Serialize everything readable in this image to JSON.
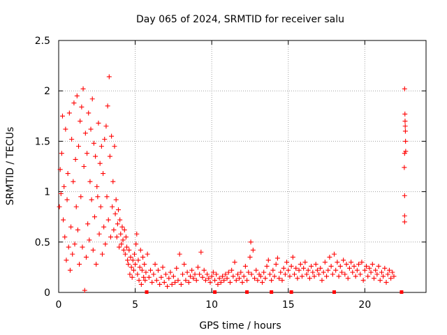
{
  "chart_data": {
    "type": "scatter",
    "title": "Day 065 of 2024, SRMTID for receiver salu",
    "xlabel": "GPS time / hours",
    "ylabel": "SRMTID / TECUs",
    "xlim": [
      0,
      24
    ],
    "ylim": [
      0,
      2.5
    ],
    "xticks": [
      0,
      5,
      10,
      15,
      20
    ],
    "xtick_labels": [
      "0",
      "5",
      "10",
      "15",
      "20"
    ],
    "yticks": [
      0,
      0.5,
      1,
      1.5,
      2,
      2.5
    ],
    "ytick_labels": [
      "0",
      "0.5",
      "1",
      "1.5",
      "2",
      "2.5"
    ],
    "grid": true,
    "marker": "+",
    "series_color": "#ff0000",
    "series": [
      {
        "name": "SRMTID",
        "points": [
          [
            0.05,
            0.85
          ],
          [
            0.1,
            1.22
          ],
          [
            0.15,
            0.98
          ],
          [
            0.2,
            1.38
          ],
          [
            0.25,
            1.75
          ],
          [
            0.3,
            0.72
          ],
          [
            0.35,
            1.05
          ],
          [
            0.4,
            0.55
          ],
          [
            0.45,
            1.62
          ],
          [
            0.5,
            0.32
          ],
          [
            0.55,
            0.92
          ],
          [
            0.6,
            1.18
          ],
          [
            0.65,
            0.45
          ],
          [
            0.7,
            1.78
          ],
          [
            0.75,
            0.22
          ],
          [
            0.8,
            0.65
          ],
          [
            0.85,
            1.52
          ],
          [
            0.9,
            0.38
          ],
          [
            0.95,
            1.1
          ],
          [
            1.0,
            1.88
          ],
          [
            1.05,
            0.48
          ],
          [
            1.1,
            1.32
          ],
          [
            1.15,
            0.85
          ],
          [
            1.2,
            1.95
          ],
          [
            1.25,
            0.62
          ],
          [
            1.3,
            1.45
          ],
          [
            1.35,
            0.28
          ],
          [
            1.4,
            1.7
          ],
          [
            1.45,
            0.95
          ],
          [
            1.5,
            1.84
          ],
          [
            1.55,
            0.45
          ],
          [
            1.6,
            2.02
          ],
          [
            1.65,
            1.25
          ],
          [
            1.7,
            0.02
          ],
          [
            1.75,
            1.58
          ],
          [
            1.8,
            0.35
          ],
          [
            1.85,
            1.38
          ],
          [
            1.9,
            0.68
          ],
          [
            1.95,
            1.78
          ],
          [
            2.0,
            0.52
          ],
          [
            2.05,
            1.1
          ],
          [
            2.1,
            1.62
          ],
          [
            2.15,
            0.92
          ],
          [
            2.2,
            1.92
          ],
          [
            2.25,
            0.42
          ],
          [
            2.3,
            1.48
          ],
          [
            2.35,
            0.75
          ],
          [
            2.4,
            1.35
          ],
          [
            2.45,
            0.28
          ],
          [
            2.5,
            1.05
          ],
          [
            2.55,
            0.95
          ],
          [
            2.6,
            1.68
          ],
          [
            2.65,
            0.58
          ],
          [
            2.7,
            1.28
          ],
          [
            2.75,
            0.85
          ],
          [
            2.8,
            1.45
          ],
          [
            2.85,
            0.38
          ],
          [
            2.9,
            1.18
          ],
          [
            2.95,
            0.65
          ],
          [
            3.0,
            1.52
          ],
          [
            3.05,
            0.48
          ],
          [
            3.1,
            1.65
          ],
          [
            3.15,
            0.95
          ],
          [
            3.2,
            1.85
          ],
          [
            3.25,
            0.72
          ],
          [
            3.3,
            2.14
          ],
          [
            3.35,
            1.35
          ],
          [
            3.4,
            0.55
          ],
          [
            3.45,
            1.55
          ],
          [
            3.5,
            0.85
          ],
          [
            3.55,
            1.1
          ],
          [
            3.6,
            0.62
          ],
          [
            3.65,
            1.45
          ],
          [
            3.7,
            0.78
          ],
          [
            3.75,
            0.92
          ],
          [
            3.8,
            0.55
          ],
          [
            3.85,
            0.68
          ],
          [
            3.9,
            0.82
          ],
          [
            3.95,
            0.45
          ],
          [
            4.0,
            0.72
          ],
          [
            4.05,
            0.58
          ],
          [
            4.1,
            0.48
          ],
          [
            4.15,
            0.65
          ],
          [
            4.2,
            0.52
          ],
          [
            4.25,
            0.42
          ],
          [
            4.3,
            0.62
          ],
          [
            4.35,
            0.38
          ],
          [
            4.4,
            0.55
          ],
          [
            4.45,
            0.45
          ],
          [
            4.5,
            0.32
          ],
          [
            4.55,
            0.28
          ],
          [
            4.6,
            0.42
          ],
          [
            4.65,
            0.18
          ],
          [
            4.7,
            0.35
          ],
          [
            4.75,
            0.25
          ],
          [
            4.8,
            0.15
          ],
          [
            4.85,
            0.32
          ],
          [
            4.9,
            0.22
          ],
          [
            4.95,
            0.38
          ],
          [
            5.0,
            0.28
          ],
          [
            5.05,
            0.48
          ],
          [
            5.1,
            0.58
          ],
          [
            5.15,
            0.18
          ],
          [
            5.2,
            0.32
          ],
          [
            5.25,
            0.12
          ],
          [
            5.3,
            0.25
          ],
          [
            5.35,
            0.42
          ],
          [
            5.4,
            0.08
          ],
          [
            5.45,
            0.22
          ],
          [
            5.5,
            0.35
          ],
          [
            5.55,
            0.15
          ],
          [
            5.6,
            0.28
          ],
          [
            5.65,
            0.12
          ],
          [
            5.7,
            0.2
          ],
          [
            5.8,
            0.38
          ],
          [
            5.9,
            0.15
          ],
          [
            6.0,
            0.22
          ],
          [
            6.1,
            0.1
          ],
          [
            6.2,
            0.18
          ],
          [
            6.3,
            0.28
          ],
          [
            6.4,
            0.12
          ],
          [
            6.5,
            0.22
          ],
          [
            6.6,
            0.08
          ],
          [
            6.7,
            0.15
          ],
          [
            6.8,
            0.25
          ],
          [
            6.9,
            0.1
          ],
          [
            7.0,
            0.18
          ],
          [
            7.1,
            0.06
          ],
          [
            7.2,
            0.14
          ],
          [
            7.3,
            0.2
          ],
          [
            7.4,
            0.08
          ],
          [
            7.5,
            0.16
          ],
          [
            7.6,
            0.1
          ],
          [
            7.7,
            0.24
          ],
          [
            7.8,
            0.12
          ],
          [
            7.9,
            0.38
          ],
          [
            8.0,
            0.08
          ],
          [
            8.1,
            0.18
          ],
          [
            8.2,
            0.28
          ],
          [
            8.3,
            0.12
          ],
          [
            8.4,
            0.2
          ],
          [
            8.5,
            0.1
          ],
          [
            8.6,
            0.16
          ],
          [
            8.7,
            0.22
          ],
          [
            8.8,
            0.14
          ],
          [
            8.9,
            0.18
          ],
          [
            9.0,
            0.12
          ],
          [
            9.1,
            0.25
          ],
          [
            9.2,
            0.18
          ],
          [
            9.3,
            0.4
          ],
          [
            9.4,
            0.15
          ],
          [
            9.5,
            0.22
          ],
          [
            9.6,
            0.12
          ],
          [
            9.7,
            0.18
          ],
          [
            9.8,
            0.14
          ],
          [
            9.9,
            0.1
          ],
          [
            10.0,
            0.16
          ],
          [
            10.1,
            0.2
          ],
          [
            10.2,
            0.12
          ],
          [
            10.3,
            0.18
          ],
          [
            10.4,
            0.08
          ],
          [
            10.5,
            0.14
          ],
          [
            10.6,
            0.1
          ],
          [
            10.7,
            0.16
          ],
          [
            10.8,
            0.12
          ],
          [
            10.9,
            0.18
          ],
          [
            11.0,
            0.14
          ],
          [
            11.1,
            0.2
          ],
          [
            11.2,
            0.1
          ],
          [
            11.3,
            0.22
          ],
          [
            11.4,
            0.16
          ],
          [
            11.5,
            0.3
          ],
          [
            11.6,
            0.12
          ],
          [
            11.7,
            0.18
          ],
          [
            11.8,
            0.14
          ],
          [
            11.9,
            0.2
          ],
          [
            12.0,
            0.1
          ],
          [
            12.1,
            0.16
          ],
          [
            12.2,
            0.26
          ],
          [
            12.3,
            0.12
          ],
          [
            12.4,
            0.2
          ],
          [
            12.5,
            0.35
          ],
          [
            12.55,
            0.5
          ],
          [
            12.6,
            0.18
          ],
          [
            12.7,
            0.42
          ],
          [
            12.8,
            0.14
          ],
          [
            12.9,
            0.22
          ],
          [
            13.0,
            0.12
          ],
          [
            13.1,
            0.18
          ],
          [
            13.2,
            0.16
          ],
          [
            13.3,
            0.1
          ],
          [
            13.4,
            0.2
          ],
          [
            13.5,
            0.14
          ],
          [
            13.6,
            0.26
          ],
          [
            13.7,
            0.32
          ],
          [
            13.8,
            0.18
          ],
          [
            13.9,
            0.12
          ],
          [
            14.0,
            0.22
          ],
          [
            14.1,
            0.16
          ],
          [
            14.2,
            0.28
          ],
          [
            14.3,
            0.34
          ],
          [
            14.4,
            0.14
          ],
          [
            14.5,
            0.2
          ],
          [
            14.6,
            0.12
          ],
          [
            14.7,
            0.24
          ],
          [
            14.8,
            0.18
          ],
          [
            14.9,
            0.3
          ],
          [
            15.0,
            0.22
          ],
          [
            15.1,
            0.16
          ],
          [
            15.2,
            0.26
          ],
          [
            15.3,
            0.35
          ],
          [
            15.4,
            0.18
          ],
          [
            15.5,
            0.24
          ],
          [
            15.6,
            0.14
          ],
          [
            15.7,
            0.22
          ],
          [
            15.8,
            0.28
          ],
          [
            15.9,
            0.16
          ],
          [
            16.0,
            0.24
          ],
          [
            16.1,
            0.3
          ],
          [
            16.2,
            0.18
          ],
          [
            16.3,
            0.22
          ],
          [
            16.4,
            0.14
          ],
          [
            16.5,
            0.26
          ],
          [
            16.6,
            0.2
          ],
          [
            16.7,
            0.16
          ],
          [
            16.8,
            0.28
          ],
          [
            16.9,
            0.22
          ],
          [
            17.0,
            0.18
          ],
          [
            17.1,
            0.24
          ],
          [
            17.2,
            0.12
          ],
          [
            17.3,
            0.2
          ],
          [
            17.4,
            0.3
          ],
          [
            17.5,
            0.16
          ],
          [
            17.6,
            0.22
          ],
          [
            17.7,
            0.35
          ],
          [
            17.8,
            0.26
          ],
          [
            17.9,
            0.18
          ],
          [
            18.0,
            0.38
          ],
          [
            18.1,
            0.22
          ],
          [
            18.2,
            0.3
          ],
          [
            18.3,
            0.16
          ],
          [
            18.4,
            0.26
          ],
          [
            18.5,
            0.2
          ],
          [
            18.6,
            0.32
          ],
          [
            18.7,
            0.18
          ],
          [
            18.8,
            0.28
          ],
          [
            18.9,
            0.14
          ],
          [
            19.0,
            0.24
          ],
          [
            19.1,
            0.3
          ],
          [
            19.2,
            0.2
          ],
          [
            19.3,
            0.26
          ],
          [
            19.4,
            0.16
          ],
          [
            19.5,
            0.22
          ],
          [
            19.6,
            0.28
          ],
          [
            19.7,
            0.18
          ],
          [
            19.8,
            0.3
          ],
          [
            19.9,
            0.12
          ],
          [
            20.0,
            0.22
          ],
          [
            20.1,
            0.26
          ],
          [
            20.2,
            0.16
          ],
          [
            20.3,
            0.24
          ],
          [
            20.4,
            0.2
          ],
          [
            20.5,
            0.28
          ],
          [
            20.6,
            0.14
          ],
          [
            20.7,
            0.22
          ],
          [
            20.8,
            0.18
          ],
          [
            20.9,
            0.26
          ],
          [
            21.0,
            0.12
          ],
          [
            21.1,
            0.2
          ],
          [
            21.2,
            0.16
          ],
          [
            21.3,
            0.24
          ],
          [
            21.4,
            0.1
          ],
          [
            21.5,
            0.18
          ],
          [
            21.6,
            0.22
          ],
          [
            21.7,
            0.14
          ],
          [
            21.8,
            0.2
          ],
          [
            21.9,
            0.16
          ],
          [
            22.6,
            2.02
          ],
          [
            22.62,
            1.77
          ],
          [
            22.63,
            1.7
          ],
          [
            22.64,
            1.65
          ],
          [
            22.65,
            1.6
          ],
          [
            22.66,
            1.5
          ],
          [
            22.67,
            1.4
          ],
          [
            22.6,
            1.38
          ],
          [
            22.58,
            1.24
          ],
          [
            22.6,
            0.96
          ],
          [
            22.6,
            0.76
          ],
          [
            22.6,
            0.7
          ]
        ]
      }
    ],
    "zero_markers_x": [
      5.75,
      10.2,
      12.3,
      13.9,
      15.2,
      18.0,
      22.4
    ]
  }
}
